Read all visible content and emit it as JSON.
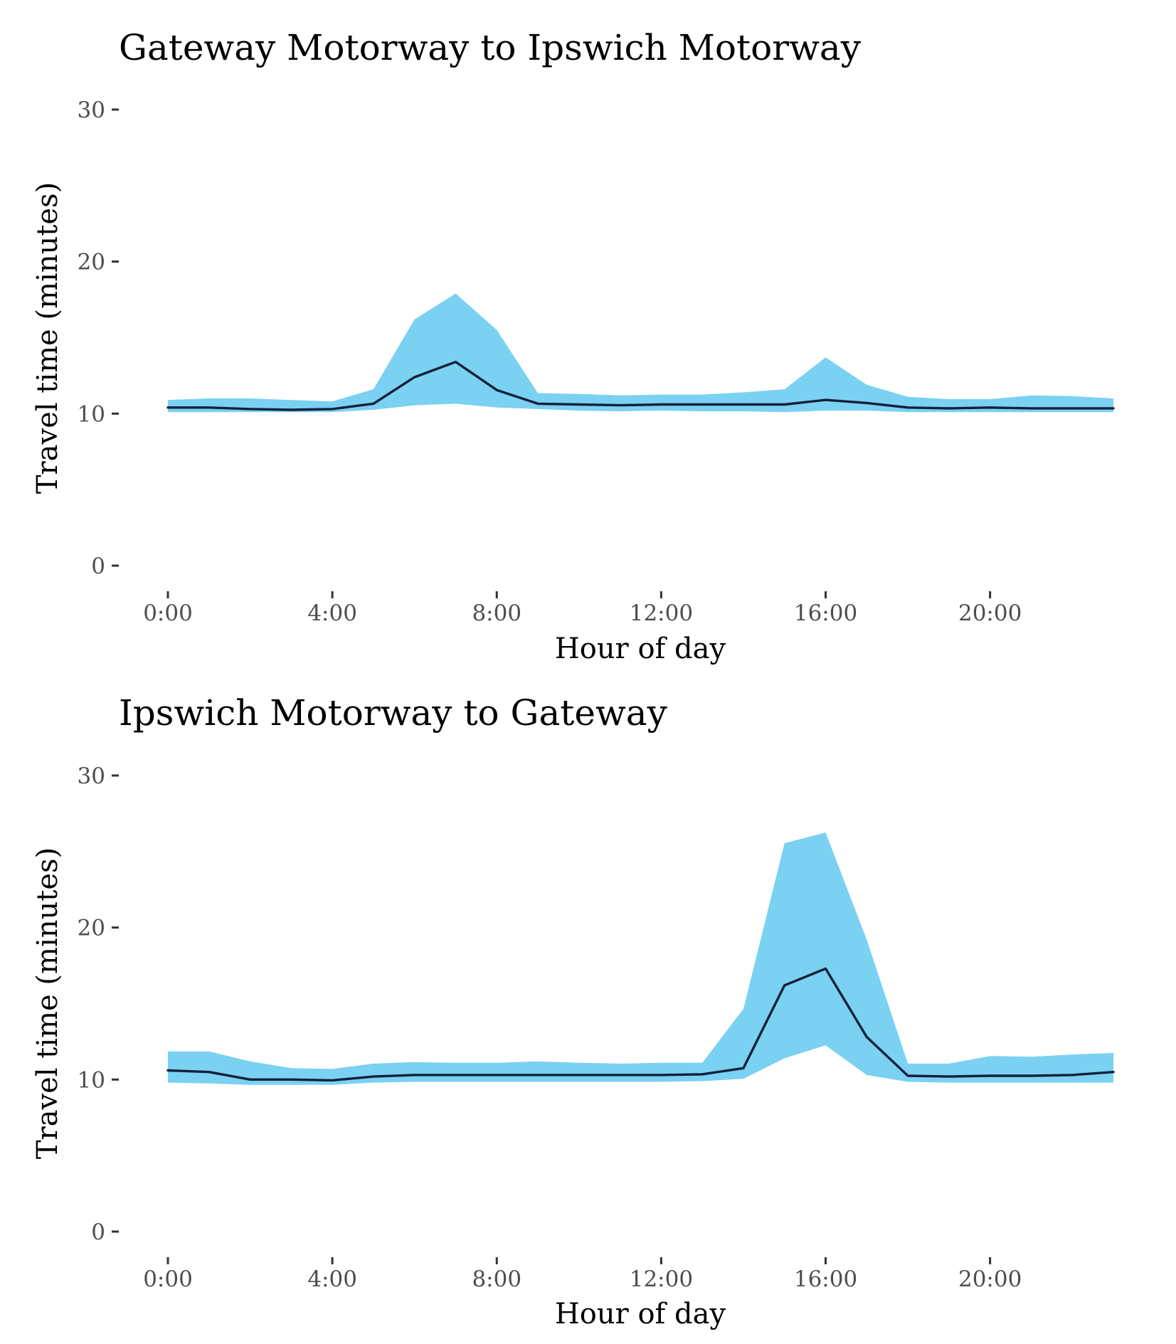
{
  "colors": {
    "ribbon": "#7ad1f2",
    "line": "#13203a",
    "tick_text": "#4d4d4d",
    "tick_mark": "#333333"
  },
  "chart_data": [
    {
      "type": "line",
      "title": "Gateway Motorway to Ipswich Motorway",
      "xlabel": "Hour of day",
      "ylabel": "Travel time (minutes)",
      "ylim": [
        0,
        30
      ],
      "xlim": [
        0,
        23
      ],
      "y_ticks": [
        {
          "value": 0,
          "label": "0"
        },
        {
          "value": 10,
          "label": "10"
        },
        {
          "value": 20,
          "label": "20"
        },
        {
          "value": 30,
          "label": "30"
        }
      ],
      "x_ticks": [
        {
          "value": 0,
          "label": "0:00"
        },
        {
          "value": 4,
          "label": "4:00"
        },
        {
          "value": 8,
          "label": "8:00"
        },
        {
          "value": 12,
          "label": "12:00"
        },
        {
          "value": 16,
          "label": "16:00"
        },
        {
          "value": 20,
          "label": "20:00"
        }
      ],
      "grid": false,
      "x": [
        0,
        1,
        2,
        3,
        4,
        5,
        6,
        7,
        8,
        9,
        10,
        11,
        12,
        13,
        14,
        15,
        16,
        17,
        18,
        19,
        20,
        21,
        22,
        23
      ],
      "series": [
        {
          "name": "median",
          "values": [
            10.4,
            10.4,
            10.3,
            10.25,
            10.3,
            10.65,
            12.4,
            13.4,
            11.55,
            10.65,
            10.6,
            10.55,
            10.6,
            10.6,
            10.6,
            10.6,
            10.9,
            10.7,
            10.4,
            10.35,
            10.4,
            10.35,
            10.35,
            10.35
          ]
        },
        {
          "name": "upper",
          "values": [
            10.9,
            11.0,
            11.0,
            10.9,
            10.8,
            11.6,
            16.2,
            17.9,
            15.5,
            11.35,
            11.3,
            11.2,
            11.25,
            11.25,
            11.4,
            11.6,
            13.7,
            11.9,
            11.1,
            10.95,
            10.95,
            11.2,
            11.15,
            11.0
          ]
        },
        {
          "name": "lower",
          "values": [
            10.1,
            10.1,
            10.1,
            10.1,
            10.1,
            10.25,
            10.55,
            10.65,
            10.4,
            10.3,
            10.2,
            10.15,
            10.2,
            10.15,
            10.15,
            10.1,
            10.2,
            10.2,
            10.1,
            10.1,
            10.1,
            10.1,
            10.1,
            10.1
          ]
        }
      ]
    },
    {
      "type": "line",
      "title": "Ipswich Motorway to Gateway",
      "xlabel": "Hour of day",
      "ylabel": "Travel time (minutes)",
      "ylim": [
        0,
        30
      ],
      "xlim": [
        0,
        23
      ],
      "y_ticks": [
        {
          "value": 0,
          "label": "0"
        },
        {
          "value": 10,
          "label": "10"
        },
        {
          "value": 20,
          "label": "20"
        },
        {
          "value": 30,
          "label": "30"
        }
      ],
      "x_ticks": [
        {
          "value": 0,
          "label": "0:00"
        },
        {
          "value": 4,
          "label": "4:00"
        },
        {
          "value": 8,
          "label": "8:00"
        },
        {
          "value": 12,
          "label": "12:00"
        },
        {
          "value": 16,
          "label": "16:00"
        },
        {
          "value": 20,
          "label": "20:00"
        }
      ],
      "grid": false,
      "x": [
        0,
        1,
        2,
        3,
        4,
        5,
        6,
        7,
        8,
        9,
        10,
        11,
        12,
        13,
        14,
        15,
        16,
        17,
        18,
        19,
        20,
        21,
        22,
        23
      ],
      "series": [
        {
          "name": "median",
          "values": [
            10.6,
            10.5,
            10.0,
            10.0,
            9.95,
            10.2,
            10.3,
            10.3,
            10.3,
            10.3,
            10.3,
            10.3,
            10.3,
            10.35,
            10.75,
            16.2,
            17.3,
            12.8,
            10.25,
            10.2,
            10.25,
            10.25,
            10.3,
            10.5
          ]
        },
        {
          "name": "upper",
          "values": [
            11.85,
            11.85,
            11.2,
            10.75,
            10.7,
            11.05,
            11.15,
            11.1,
            11.1,
            11.2,
            11.1,
            11.05,
            11.1,
            11.1,
            14.65,
            25.55,
            26.25,
            19.2,
            11.05,
            11.05,
            11.55,
            11.5,
            11.65,
            11.75
          ]
        },
        {
          "name": "lower",
          "values": [
            9.8,
            9.75,
            9.65,
            9.65,
            9.65,
            9.8,
            9.85,
            9.85,
            9.85,
            9.85,
            9.85,
            9.85,
            9.85,
            9.9,
            10.05,
            11.4,
            12.25,
            10.3,
            9.85,
            9.8,
            9.8,
            9.8,
            9.8,
            9.8
          ]
        }
      ]
    }
  ]
}
